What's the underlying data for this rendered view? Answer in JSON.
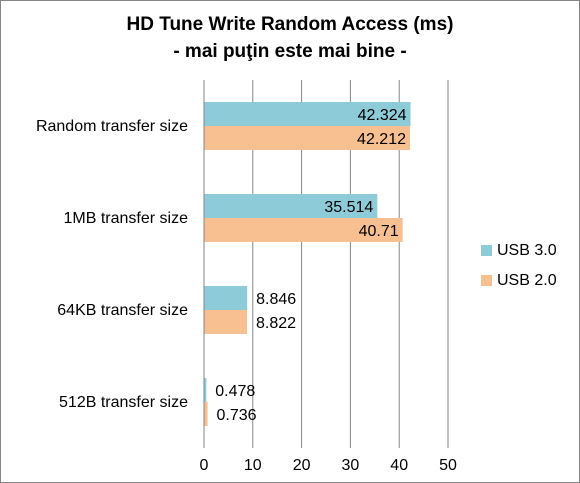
{
  "chart_data": {
    "type": "bar",
    "orientation": "horizontal",
    "title": "HD Tune Write Random Access (ms)",
    "subtitle": "- mai puţin este mai bine -",
    "categories": [
      "Random transfer size",
      "1MB transfer size",
      "64KB transfer size",
      "512B transfer size"
    ],
    "series": [
      {
        "name": "USB 3.0",
        "color": "#8ecbd9",
        "values": [
          42.324,
          35.514,
          8.846,
          0.478
        ],
        "labels": [
          "42.324",
          "35.514",
          "8.846",
          "0.478"
        ]
      },
      {
        "name": "USB 2.0",
        "color": "#f8bf90",
        "values": [
          42.212,
          40.71,
          8.822,
          0.736
        ],
        "labels": [
          "42.212",
          "40.71",
          "8.822",
          "0.736"
        ]
      }
    ],
    "xlim": [
      0,
      50
    ],
    "xticks": [
      "0",
      "10",
      "20",
      "30",
      "40",
      "50"
    ],
    "grid": true,
    "legend_position": "right"
  }
}
